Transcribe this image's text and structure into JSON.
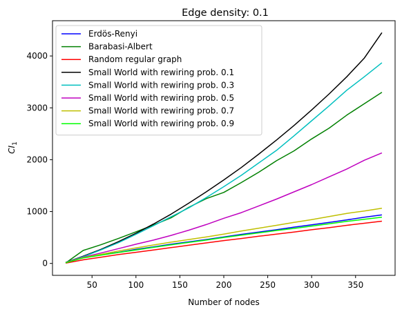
{
  "chart_data": {
    "type": "line",
    "title": "Edge density: 0.1",
    "xlabel": "Number of nodes",
    "ylabel": "CI",
    "ylabel_subscript": "1",
    "xlim": [
      5,
      395
    ],
    "ylim": [
      -230,
      4680
    ],
    "xticks": [
      50,
      100,
      150,
      200,
      250,
      300,
      350
    ],
    "yticks": [
      0,
      1000,
      2000,
      3000,
      4000
    ],
    "grid": false,
    "legend_position": "top-left",
    "x": [
      20,
      40,
      60,
      80,
      100,
      120,
      140,
      160,
      180,
      200,
      220,
      240,
      260,
      280,
      300,
      320,
      340,
      360,
      380
    ],
    "series": [
      {
        "name": "Erdös-Renyi",
        "color": "#0000ff",
        "values": [
          10,
          110,
          165,
          215,
          270,
          320,
          370,
          415,
          460,
          510,
          560,
          605,
          650,
          700,
          745,
          790,
          840,
          890,
          935
        ]
      },
      {
        "name": "Barabasi-Albert",
        "color": "#008000",
        "values": [
          10,
          250,
          360,
          480,
          610,
          740,
          880,
          1080,
          1250,
          1370,
          1560,
          1760,
          1980,
          2170,
          2400,
          2610,
          2860,
          3080,
          3300
        ]
      },
      {
        "name": "Random regular graph",
        "color": "#ff0000",
        "values": [
          5,
          70,
          120,
          170,
          215,
          260,
          305,
          350,
          395,
          440,
          480,
          525,
          565,
          605,
          650,
          690,
          735,
          775,
          815
        ]
      },
      {
        "name": "Small World with rewiring prob. 0.1",
        "color": "#000000",
        "values": [
          20,
          140,
          270,
          420,
          580,
          760,
          950,
          1160,
          1380,
          1610,
          1850,
          2110,
          2380,
          2660,
          2960,
          3270,
          3600,
          3960,
          4450
        ]
      },
      {
        "name": "Small World with rewiring prob. 0.3",
        "color": "#00bfbf",
        "values": [
          20,
          130,
          260,
          400,
          560,
          730,
          900,
          1070,
          1270,
          1480,
          1700,
          1940,
          2180,
          2460,
          2750,
          3040,
          3340,
          3600,
          3870
        ]
      },
      {
        "name": "Small World with rewiring prob. 0.5",
        "color": "#bf00bf",
        "values": [
          20,
          120,
          200,
          285,
          370,
          450,
          540,
          640,
          750,
          870,
          980,
          1110,
          1240,
          1380,
          1520,
          1670,
          1820,
          1990,
          2130
        ]
      },
      {
        "name": "Small World with rewiring prob. 0.7",
        "color": "#bfbf00",
        "values": [
          15,
          110,
          175,
          240,
          300,
          355,
          410,
          460,
          510,
          565,
          625,
          680,
          735,
          790,
          845,
          905,
          965,
          1010,
          1065
        ]
      },
      {
        "name": "Small World with rewiring prob. 0.9",
        "color": "#00ff00",
        "values": [
          15,
          105,
          160,
          210,
          260,
          310,
          360,
          405,
          450,
          500,
          545,
          590,
          635,
          675,
          720,
          765,
          810,
          850,
          890
        ]
      }
    ]
  }
}
